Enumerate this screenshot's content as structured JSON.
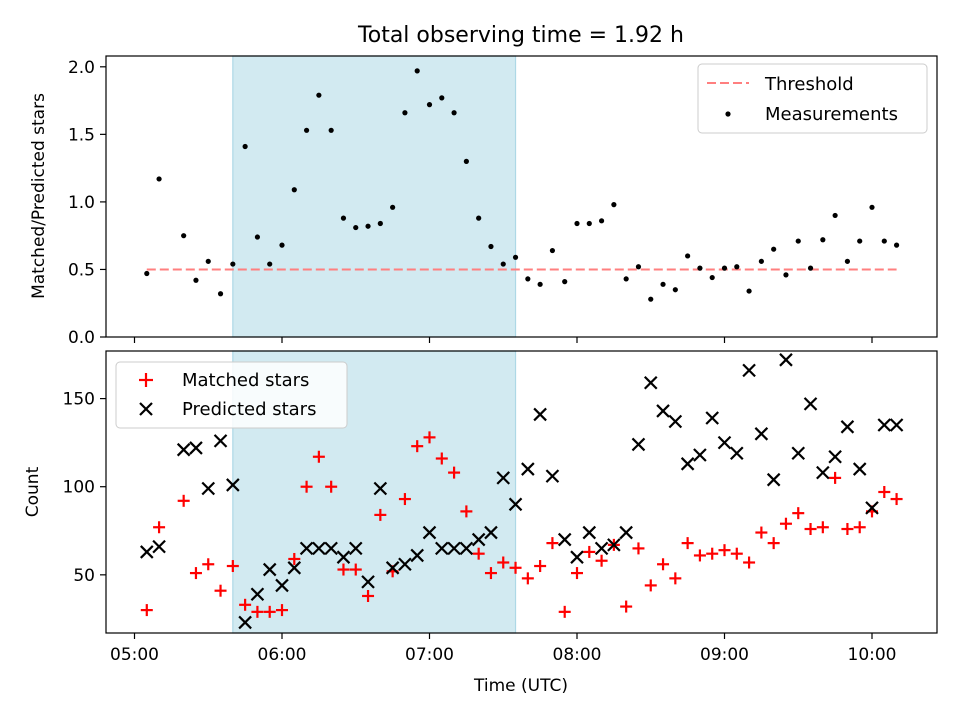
{
  "title": "Total observing time = 1.92 h",
  "colors": {
    "threshold": "#ff7f7f",
    "measurements": "#000000",
    "matched": "#ff0000",
    "predicted": "#000000",
    "shade": "#add8e6"
  },
  "chart_data": [
    {
      "type": "scatter",
      "ylabel": "Matched/Predicted stars",
      "ylim": [
        0,
        2.08
      ],
      "yticks": [
        "0.0",
        "0.5",
        "1.0",
        "1.5",
        "2.0"
      ],
      "grid": false,
      "legend_position": "top-right",
      "shaded_span": [
        "05:40",
        "07:35"
      ],
      "threshold": {
        "name": "Threshold",
        "y": 0.5,
        "x_range": [
          "05:05",
          "10:10"
        ]
      },
      "series": [
        {
          "name": "Measurements",
          "x": [
            "05:05",
            "05:10",
            "05:20",
            "05:25",
            "05:30",
            "05:35",
            "05:40",
            "05:45",
            "05:50",
            "05:55",
            "06:00",
            "06:05",
            "06:10",
            "06:15",
            "06:20",
            "06:25",
            "06:30",
            "06:35",
            "06:40",
            "06:45",
            "06:50",
            "06:55",
            "07:00",
            "07:05",
            "07:10",
            "07:15",
            "07:20",
            "07:25",
            "07:30",
            "07:35",
            "07:40",
            "07:45",
            "07:50",
            "07:55",
            "08:00",
            "08:05",
            "08:10",
            "08:15",
            "08:20",
            "08:25",
            "08:30",
            "08:35",
            "08:40",
            "08:45",
            "08:50",
            "08:55",
            "09:00",
            "09:05",
            "09:10",
            "09:15",
            "09:20",
            "09:25",
            "09:30",
            "09:35",
            "09:40",
            "09:45",
            "09:50",
            "09:55",
            "10:00",
            "10:05",
            "10:10"
          ],
          "y": [
            0.47,
            1.17,
            0.75,
            0.42,
            0.56,
            0.32,
            0.54,
            1.41,
            0.74,
            0.54,
            0.68,
            1.09,
            1.53,
            1.79,
            1.53,
            0.88,
            0.81,
            0.82,
            0.84,
            0.96,
            1.66,
            1.97,
            1.72,
            1.77,
            1.66,
            1.3,
            0.88,
            0.67,
            0.54,
            0.59,
            0.43,
            0.39,
            0.64,
            0.41,
            0.84,
            0.84,
            0.86,
            0.98,
            0.43,
            0.52,
            0.28,
            0.39,
            0.35,
            0.6,
            0.51,
            0.44,
            0.51,
            0.52,
            0.34,
            0.56,
            0.65,
            0.46,
            0.71,
            0.51,
            0.72,
            0.9,
            0.56,
            0.71,
            0.96,
            0.71,
            0.68
          ]
        }
      ]
    },
    {
      "type": "scatter",
      "xlabel": "Time (UTC)",
      "ylabel": "Count",
      "ylim": [
        17,
        177
      ],
      "yticks": [
        "50",
        "100",
        "150"
      ],
      "xticks": [
        "05:00",
        "06:00",
        "07:00",
        "08:00",
        "09:00",
        "10:00"
      ],
      "grid": false,
      "legend_position": "top-left",
      "shaded_span": [
        "05:40",
        "07:35"
      ],
      "series": [
        {
          "name": "Matched stars",
          "marker": "plus",
          "x": [
            "05:05",
            "05:10",
            "05:20",
            "05:25",
            "05:30",
            "05:35",
            "05:40",
            "05:45",
            "05:50",
            "05:55",
            "06:00",
            "06:05",
            "06:10",
            "06:15",
            "06:20",
            "06:25",
            "06:30",
            "06:35",
            "06:40",
            "06:45",
            "06:50",
            "06:55",
            "07:00",
            "07:05",
            "07:10",
            "07:15",
            "07:20",
            "07:25",
            "07:30",
            "07:35",
            "07:40",
            "07:45",
            "07:50",
            "07:55",
            "08:00",
            "08:05",
            "08:10",
            "08:15",
            "08:20",
            "08:25",
            "08:30",
            "08:35",
            "08:40",
            "08:45",
            "08:50",
            "08:55",
            "09:00",
            "09:05",
            "09:10",
            "09:15",
            "09:20",
            "09:25",
            "09:30",
            "09:35",
            "09:40",
            "09:45",
            "09:50",
            "09:55",
            "10:00",
            "10:05",
            "10:10"
          ],
          "y": [
            30,
            77,
            92,
            51,
            56,
            41,
            55,
            33,
            29,
            29,
            30,
            59,
            100,
            117,
            100,
            53,
            53,
            38,
            84,
            52,
            93,
            123,
            128,
            116,
            108,
            86,
            62,
            51,
            57,
            54,
            48,
            55,
            68,
            29,
            51,
            63,
            58,
            67,
            32,
            65,
            44,
            56,
            48,
            68,
            61,
            62,
            64,
            62,
            57,
            74,
            68,
            79,
            85,
            76,
            77,
            105,
            76,
            77,
            86,
            97,
            93
          ]
        },
        {
          "name": "Predicted stars",
          "marker": "x",
          "x": [
            "05:05",
            "05:10",
            "05:20",
            "05:25",
            "05:30",
            "05:35",
            "05:40",
            "05:45",
            "05:50",
            "05:55",
            "06:00",
            "06:05",
            "06:10",
            "06:15",
            "06:20",
            "06:25",
            "06:30",
            "06:35",
            "06:40",
            "06:45",
            "06:50",
            "06:55",
            "07:00",
            "07:05",
            "07:10",
            "07:15",
            "07:20",
            "07:25",
            "07:30",
            "07:35",
            "07:40",
            "07:45",
            "07:50",
            "07:55",
            "08:00",
            "08:05",
            "08:10",
            "08:15",
            "08:20",
            "08:25",
            "08:30",
            "08:35",
            "08:40",
            "08:45",
            "08:50",
            "08:55",
            "09:00",
            "09:05",
            "09:10",
            "09:15",
            "09:20",
            "09:25",
            "09:30",
            "09:35",
            "09:40",
            "09:45",
            "09:50",
            "09:55",
            "10:00",
            "10:05",
            "10:10"
          ],
          "y": [
            63,
            66,
            121,
            122,
            99,
            126,
            101,
            23,
            39,
            53,
            44,
            54,
            65,
            65,
            65,
            60,
            65,
            46,
            99,
            54,
            56,
            61,
            74,
            65,
            65,
            65,
            70,
            74,
            105,
            90,
            110,
            141,
            106,
            70,
            60,
            74,
            65,
            67,
            74,
            124,
            159,
            143,
            137,
            113,
            118,
            139,
            125,
            119,
            166,
            130,
            104,
            172,
            119,
            147,
            108,
            117,
            134,
            110,
            88,
            135,
            135
          ]
        }
      ]
    }
  ]
}
